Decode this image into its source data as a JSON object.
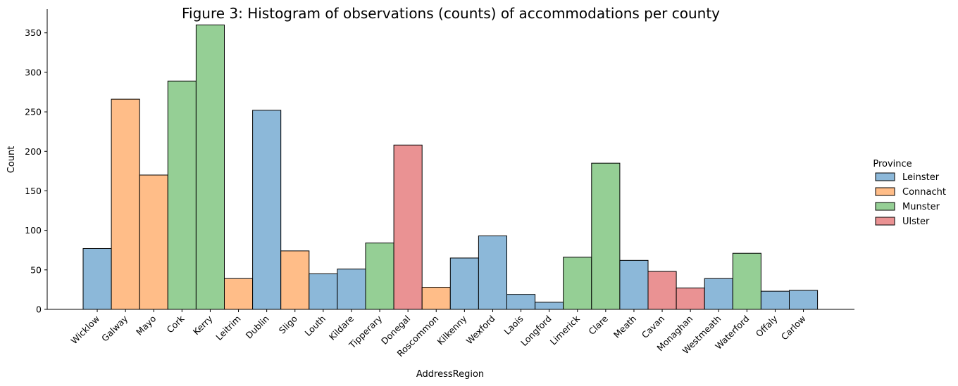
{
  "chart_data": {
    "type": "bar",
    "title": "Figure 3: Histogram of observations (counts) of accommodations per county",
    "xlabel": "AddressRegion",
    "ylabel": "Count",
    "ylim": [
      0,
      380
    ],
    "yticks": [
      0,
      50,
      100,
      150,
      200,
      250,
      300,
      350
    ],
    "grid": false,
    "legend_position": "right",
    "legend_title": "Province",
    "provinces": [
      {
        "name": "Leinster",
        "color": "#8cb8d9"
      },
      {
        "name": "Connacht",
        "color": "#ffbd88"
      },
      {
        "name": "Munster",
        "color": "#95cf95"
      },
      {
        "name": "Ulster",
        "color": "#ea9293"
      }
    ],
    "categories": [
      "Wicklow",
      "Galway",
      "Mayo",
      "Cork",
      "Kerry",
      "Leitrim",
      "Dublin",
      "Sligo",
      "Louth",
      "Kildare",
      "Tipperary",
      "Donegal",
      "Roscommon",
      "Kilkenny",
      "Wexford",
      "Laois",
      "Longford",
      "Limerick",
      "Clare",
      "Meath",
      "Cavan",
      "Monaghan",
      "Westmeath",
      "Waterford",
      "Offaly",
      "Carlow"
    ],
    "values": [
      77,
      266,
      170,
      289,
      360,
      39,
      252,
      74,
      45,
      51,
      84,
      208,
      28,
      65,
      93,
      19,
      9,
      66,
      185,
      62,
      48,
      27,
      39,
      71,
      23,
      24
    ],
    "province_of_category": [
      "Leinster",
      "Connacht",
      "Connacht",
      "Munster",
      "Munster",
      "Connacht",
      "Leinster",
      "Connacht",
      "Leinster",
      "Leinster",
      "Munster",
      "Ulster",
      "Connacht",
      "Leinster",
      "Leinster",
      "Leinster",
      "Leinster",
      "Munster",
      "Munster",
      "Leinster",
      "Ulster",
      "Ulster",
      "Leinster",
      "Munster",
      "Leinster",
      "Leinster"
    ]
  }
}
